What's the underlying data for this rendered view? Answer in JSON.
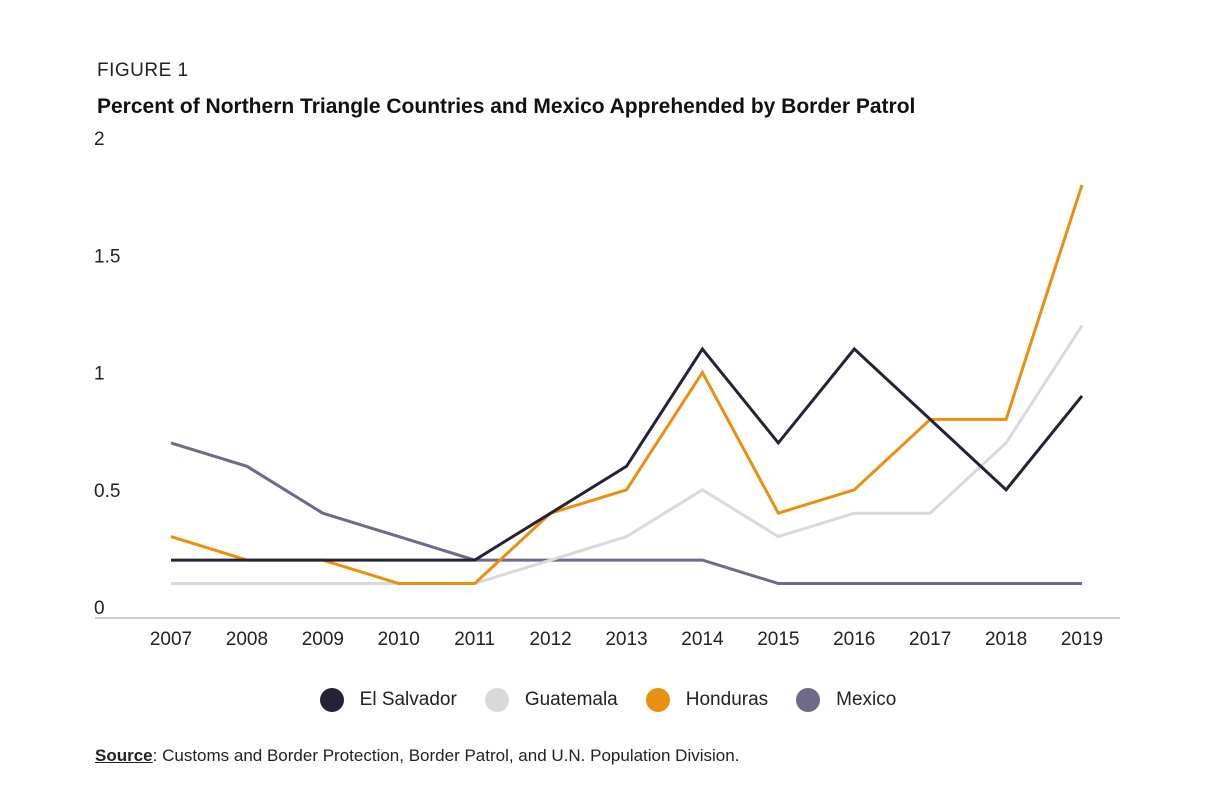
{
  "figure_label": "FIGURE 1",
  "source": {
    "label": "Source",
    "text": ": Customs and Border Protection, Border Patrol, and U.N. Population Division."
  },
  "chart_data": {
    "type": "line",
    "title": "Percent of Northern Triangle Countries and Mexico Apprehended by Border Patrol",
    "xlabel": "",
    "ylabel": "",
    "x": [
      "2007",
      "2008",
      "2009",
      "2010",
      "2011",
      "2012",
      "2013",
      "2014",
      "2015",
      "2016",
      "2017",
      "2018",
      "2019"
    ],
    "y_ticks": [
      "0",
      "0.5",
      "1",
      "1.5",
      "2"
    ],
    "ylim": [
      0,
      2
    ],
    "grid": false,
    "legend_position": "bottom",
    "series": [
      {
        "name": "El Salvador",
        "color": "#262236",
        "values": [
          0.2,
          0.2,
          0.2,
          0.2,
          0.2,
          0.4,
          0.6,
          1.1,
          0.7,
          1.1,
          0.8,
          0.5,
          0.9
        ]
      },
      {
        "name": "Guatemala",
        "color": "#d9d9d9",
        "values": [
          0.1,
          0.1,
          0.1,
          0.1,
          0.1,
          0.2,
          0.3,
          0.5,
          0.3,
          0.4,
          0.4,
          0.7,
          1.2
        ]
      },
      {
        "name": "Honduras",
        "color": "#e8900f",
        "values": [
          0.3,
          0.2,
          0.2,
          0.1,
          0.1,
          0.4,
          0.5,
          1.0,
          0.4,
          0.5,
          0.8,
          0.8,
          1.8
        ]
      },
      {
        "name": "Mexico",
        "color": "#6f6a87",
        "values": [
          0.7,
          0.6,
          0.4,
          0.3,
          0.2,
          0.2,
          0.2,
          0.2,
          0.1,
          0.1,
          0.1,
          0.1,
          0.1
        ]
      }
    ]
  }
}
